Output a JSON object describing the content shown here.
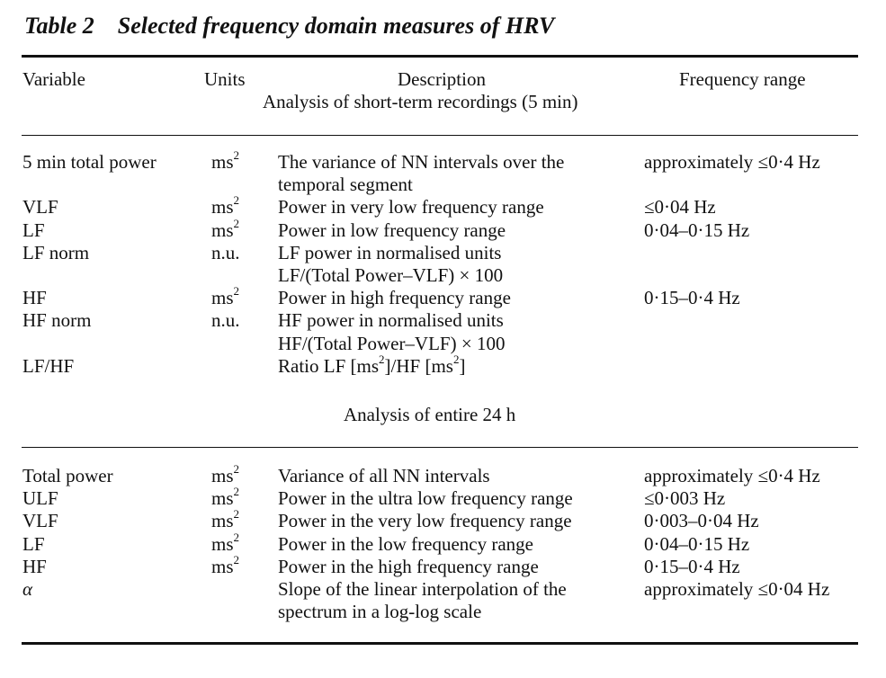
{
  "title": {
    "number": "Table 2",
    "text": "Selected frequency domain measures of HRV"
  },
  "headers": {
    "variable": "Variable",
    "units": "Units",
    "description": "Description",
    "frequency": "Frequency range"
  },
  "sections": {
    "short": {
      "label": "Analysis of short-term recordings (5 min)",
      "rows": [
        {
          "variable": "5 min total power",
          "unit": "ms",
          "unit_sup": "2",
          "desc1": "The variance of NN intervals over the",
          "desc2": "temporal segment",
          "freq": "approximately ≤0·4 Hz"
        },
        {
          "variable": "VLF",
          "unit": "ms",
          "unit_sup": "2",
          "desc1": "Power in very low frequency range",
          "freq": "≤0·04 Hz"
        },
        {
          "variable": "LF",
          "unit": "ms",
          "unit_sup": "2",
          "desc1": "Power in low frequency range",
          "freq": "0·04–0·15 Hz"
        },
        {
          "variable": "LF norm",
          "unit": "n.u.",
          "desc1": "LF power in normalised units",
          "desc2": "LF/(Total Power–VLF) × 100",
          "freq": ""
        },
        {
          "variable": "HF",
          "unit": "ms",
          "unit_sup": "2",
          "desc1": "Power in high frequency range",
          "freq": "0·15–0·4 Hz"
        },
        {
          "variable": "HF norm",
          "unit": "n.u.",
          "desc1": "HF power in normalised units",
          "desc2": "HF/(Total Power–VLF) × 100",
          "freq": ""
        },
        {
          "variable": "LF/HF",
          "unit": "",
          "desc_ratio": {
            "a": "Ratio LF [ms",
            "sup1": "2",
            "b": "]/HF [ms",
            "sup2": "2",
            "c": "]"
          },
          "freq": ""
        }
      ]
    },
    "long": {
      "label": "Analysis of entire 24 h",
      "rows": [
        {
          "variable": "Total power",
          "unit": "ms",
          "unit_sup": "2",
          "desc1": "Variance of all NN intervals",
          "freq": "approximately ≤0·4 Hz"
        },
        {
          "variable": "ULF",
          "unit": "ms",
          "unit_sup": "2",
          "desc1": "Power in the ultra low frequency range",
          "freq": "≤0·003 Hz"
        },
        {
          "variable": "VLF",
          "unit": "ms",
          "unit_sup": "2",
          "desc1": "Power in the very low frequency range",
          "freq": "0·003–0·04 Hz"
        },
        {
          "variable": "LF",
          "unit": "ms",
          "unit_sup": "2",
          "desc1": "Power in the low frequency range",
          "freq": "0·04–0·15 Hz"
        },
        {
          "variable": "HF",
          "unit": "ms",
          "unit_sup": "2",
          "desc1": "Power in the high frequency range",
          "freq": "0·15–0·4 Hz"
        },
        {
          "variable": "α",
          "unit": "",
          "desc1": "Slope of the linear interpolation of the",
          "desc2": "spectrum in a log-log scale",
          "freq": "approximately ≤0·04 Hz"
        }
      ]
    }
  }
}
